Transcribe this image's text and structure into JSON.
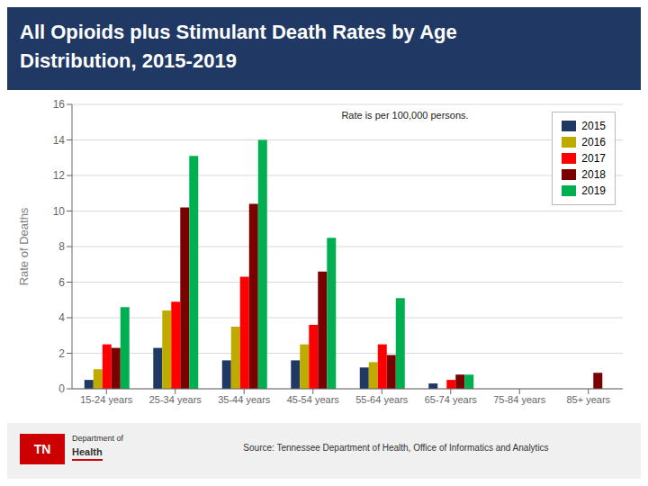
{
  "chart_data": {
    "type": "bar",
    "title": "All Opioids plus Stimulant Death Rates by Age\nDistribution, 2015-2019",
    "ylabel": "Rate of Deaths",
    "annotations": [
      "Rate is per 100,000 persons.",
      "Source: Tennessee Department of Health, Office of Informatics and Analytics",
      "TN",
      "Department of",
      "Health"
    ],
    "categories": [
      "15-24 years",
      "25-34 years",
      "35-44 years",
      "45-54 years",
      "55-64 years",
      "65-74 years",
      "75-84 years",
      "85+ years"
    ],
    "series": [
      {
        "name": "2015",
        "color": "#203864",
        "values": [
          0.5,
          2.3,
          1.6,
          1.6,
          1.2,
          0.3,
          0.0,
          0.0
        ]
      },
      {
        "name": "2016",
        "color": "#bfaa00",
        "values": [
          1.1,
          4.4,
          3.5,
          2.5,
          1.5,
          0.0,
          0.0,
          0.0
        ]
      },
      {
        "name": "2017",
        "color": "#ff0000",
        "values": [
          2.5,
          4.9,
          6.3,
          3.6,
          2.5,
          0.5,
          0.0,
          0.0
        ]
      },
      {
        "name": "2018",
        "color": "#7b0000",
        "values": [
          2.3,
          10.2,
          10.4,
          6.6,
          1.9,
          0.8,
          0.0,
          0.9
        ]
      },
      {
        "name": "2019",
        "color": "#00b050",
        "values": [
          4.6,
          13.1,
          14.0,
          8.5,
          5.1,
          0.8,
          0.0,
          0.0
        ]
      }
    ],
    "ylim": [
      0,
      16
    ],
    "yticks": [
      0,
      2,
      4,
      6,
      8,
      10,
      12,
      14,
      16
    ],
    "grid": true,
    "legend": "upper right"
  }
}
